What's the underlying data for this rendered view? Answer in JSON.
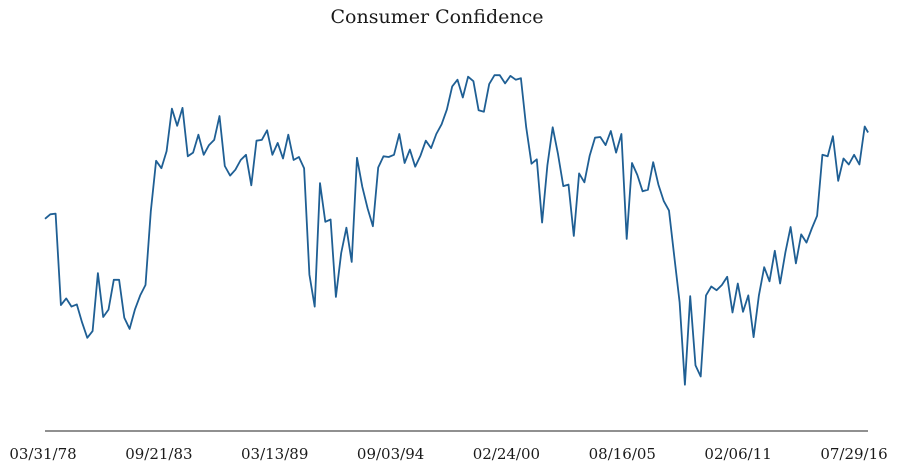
{
  "chart_data": {
    "type": "line",
    "title": "Consumer Confidence",
    "xlabel": "",
    "ylabel": "",
    "x_tick_labels": [
      "03/31/78",
      "09/21/83",
      "03/13/89",
      "09/03/94",
      "02/24/00",
      "08/16/05",
      "02/06/11",
      "07/29/16"
    ],
    "x_range": [
      "1978-03-31",
      "2017-02-28"
    ],
    "y_axis_visible": false,
    "grid": false,
    "legend": "none",
    "colors": {
      "line": "#1f5f94",
      "axis": "#222222",
      "text": "#1a1a1a"
    },
    "series": [
      {
        "values": [
          [
            1978.25,
            83.7
          ],
          [
            1978.5,
            84.3
          ],
          [
            1978.75,
            84.4
          ],
          [
            1979.0,
            72.1
          ],
          [
            1979.25,
            73.0
          ],
          [
            1979.5,
            71.9
          ],
          [
            1979.75,
            72.2
          ],
          [
            1980.0,
            69.8
          ],
          [
            1980.25,
            67.7
          ],
          [
            1980.5,
            68.6
          ],
          [
            1980.75,
            76.4
          ],
          [
            1981.0,
            70.5
          ],
          [
            1981.25,
            71.5
          ],
          [
            1981.5,
            75.5
          ],
          [
            1981.75,
            75.5
          ],
          [
            1982.0,
            70.4
          ],
          [
            1982.25,
            68.9
          ],
          [
            1982.5,
            71.5
          ],
          [
            1982.75,
            73.4
          ],
          [
            1983.0,
            74.8
          ],
          [
            1983.25,
            84.7
          ],
          [
            1983.5,
            91.5
          ],
          [
            1983.75,
            90.5
          ],
          [
            1984.0,
            92.8
          ],
          [
            1984.25,
            98.5
          ],
          [
            1984.5,
            96.2
          ],
          [
            1984.75,
            98.6
          ],
          [
            1985.0,
            92.1
          ],
          [
            1985.25,
            92.6
          ],
          [
            1985.5,
            95.0
          ],
          [
            1985.75,
            92.3
          ],
          [
            1986.0,
            93.6
          ],
          [
            1986.25,
            94.3
          ],
          [
            1986.5,
            97.5
          ],
          [
            1986.75,
            90.8
          ],
          [
            1987.0,
            89.5
          ],
          [
            1987.25,
            90.3
          ],
          [
            1987.5,
            91.6
          ],
          [
            1987.75,
            92.3
          ],
          [
            1988.0,
            88.2
          ],
          [
            1988.25,
            94.2
          ],
          [
            1988.5,
            94.3
          ],
          [
            1988.75,
            95.6
          ],
          [
            1989.0,
            92.3
          ],
          [
            1989.25,
            93.9
          ],
          [
            1989.5,
            91.8
          ],
          [
            1989.75,
            95.0
          ],
          [
            1990.0,
            91.6
          ],
          [
            1990.25,
            92.0
          ],
          [
            1990.5,
            90.5
          ],
          [
            1990.75,
            76.2
          ],
          [
            1991.0,
            71.9
          ],
          [
            1991.25,
            88.5
          ],
          [
            1991.5,
            83.3
          ],
          [
            1991.75,
            83.6
          ],
          [
            1992.0,
            73.2
          ],
          [
            1992.25,
            79.1
          ],
          [
            1992.5,
            82.5
          ],
          [
            1992.75,
            77.9
          ],
          [
            1993.0,
            91.9
          ],
          [
            1993.25,
            88.0
          ],
          [
            1993.5,
            85.1
          ],
          [
            1993.75,
            82.7
          ],
          [
            1994.0,
            90.6
          ],
          [
            1994.25,
            92.1
          ],
          [
            1994.5,
            92.0
          ],
          [
            1994.75,
            92.3
          ],
          [
            1995.0,
            95.1
          ],
          [
            1995.25,
            91.2
          ],
          [
            1995.5,
            93.0
          ],
          [
            1995.75,
            90.7
          ],
          [
            1996.0,
            92.2
          ],
          [
            1996.25,
            94.2
          ],
          [
            1996.5,
            93.2
          ],
          [
            1996.75,
            95.1
          ],
          [
            1997.0,
            96.4
          ],
          [
            1997.25,
            98.4
          ],
          [
            1997.5,
            101.5
          ],
          [
            1997.75,
            102.4
          ],
          [
            1998.0,
            100.0
          ],
          [
            1998.25,
            102.8
          ],
          [
            1998.5,
            102.2
          ],
          [
            1998.75,
            98.3
          ],
          [
            1999.0,
            98.1
          ],
          [
            1999.25,
            101.8
          ],
          [
            1999.5,
            103.0
          ],
          [
            1999.75,
            103.0
          ],
          [
            2000.0,
            101.9
          ],
          [
            2000.25,
            102.9
          ],
          [
            2000.5,
            102.4
          ],
          [
            2000.75,
            102.6
          ],
          [
            2001.0,
            96.0
          ],
          [
            2001.25,
            91.1
          ],
          [
            2001.5,
            91.7
          ],
          [
            2001.75,
            83.2
          ],
          [
            2002.0,
            90.9
          ],
          [
            2002.25,
            96.0
          ],
          [
            2002.5,
            92.4
          ],
          [
            2002.75,
            88.1
          ],
          [
            2003.0,
            88.3
          ],
          [
            2003.25,
            81.4
          ],
          [
            2003.5,
            89.8
          ],
          [
            2003.75,
            88.6
          ],
          [
            2004.0,
            92.2
          ],
          [
            2004.25,
            94.6
          ],
          [
            2004.5,
            94.7
          ],
          [
            2004.75,
            93.6
          ],
          [
            2005.0,
            95.5
          ],
          [
            2005.25,
            92.6
          ],
          [
            2005.5,
            95.1
          ],
          [
            2005.75,
            81.0
          ],
          [
            2006.0,
            91.2
          ],
          [
            2006.25,
            89.6
          ],
          [
            2006.5,
            87.4
          ],
          [
            2006.75,
            87.6
          ],
          [
            2007.0,
            91.3
          ],
          [
            2007.25,
            88.3
          ],
          [
            2007.5,
            86.1
          ],
          [
            2007.75,
            84.8
          ],
          [
            2008.0,
            78.6
          ],
          [
            2008.25,
            72.5
          ],
          [
            2008.5,
            61.4
          ],
          [
            2008.75,
            73.3
          ],
          [
            2009.0,
            64.0
          ],
          [
            2009.25,
            62.5
          ],
          [
            2009.5,
            73.4
          ],
          [
            2009.75,
            74.6
          ],
          [
            2010.0,
            74.1
          ],
          [
            2010.25,
            74.8
          ],
          [
            2010.5,
            75.9
          ],
          [
            2010.75,
            71.1
          ],
          [
            2011.0,
            75.0
          ],
          [
            2011.25,
            71.2
          ],
          [
            2011.5,
            73.4
          ],
          [
            2011.75,
            67.8
          ],
          [
            2012.0,
            73.4
          ],
          [
            2012.25,
            77.2
          ],
          [
            2012.5,
            75.3
          ],
          [
            2012.75,
            79.4
          ],
          [
            2013.0,
            75.0
          ],
          [
            2013.25,
            79.2
          ],
          [
            2013.5,
            82.6
          ],
          [
            2013.75,
            77.7
          ],
          [
            2014.0,
            81.6
          ],
          [
            2014.25,
            80.5
          ],
          [
            2014.5,
            82.4
          ],
          [
            2014.75,
            84.1
          ],
          [
            2015.0,
            92.3
          ],
          [
            2015.25,
            92.1
          ],
          [
            2015.5,
            94.8
          ],
          [
            2015.75,
            88.8
          ],
          [
            2016.0,
            91.8
          ],
          [
            2016.25,
            91.0
          ],
          [
            2016.5,
            92.3
          ],
          [
            2016.75,
            91.0
          ],
          [
            2017.0,
            96.1
          ],
          [
            2017.16,
            95.3
          ]
        ]
      }
    ],
    "ylim": [
      58,
      108
    ]
  }
}
